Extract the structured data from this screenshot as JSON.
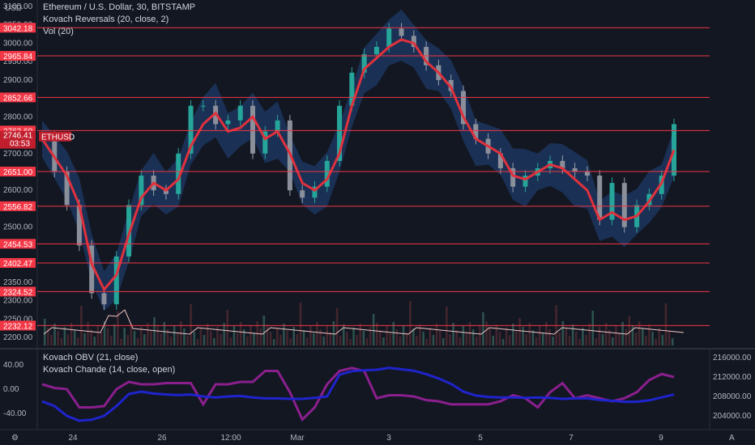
{
  "legend": {
    "title": "Ethereum / U.S. Dollar, 30, BITSTAMP",
    "ind1": "Kovach Reversals (20, close, 2)",
    "ind2": "Vol (20)",
    "ind3": "Kovach OBV (21, close)",
    "ind4": "Kovach Chande (14, close, open)"
  },
  "currency": "USD",
  "corner_left": "⚙",
  "corner_right": "A",
  "colors": {
    "background": "#131722",
    "level_line": "#f23645",
    "band": "#1e3a66",
    "ma": "#e0313d",
    "obv": "#1f24cc",
    "chande": "#8a1f8d",
    "vol_ma": "#f2c4c4"
  },
  "price_tag": {
    "symbol": "ETHUSD",
    "price": "2746.41",
    "countdown": "03:53"
  },
  "chart_data": {
    "type": "line",
    "price_axis": {
      "ylim": [
        2200,
        3100
      ],
      "ticks": [
        "3100.00",
        "3050.00",
        "3000.00",
        "2950.00",
        "2900.00",
        "2850.00",
        "2800.00",
        "2750.00",
        "2700.00",
        "2650.00",
        "2600.00",
        "2550.00",
        "2500.00",
        "2450.00",
        "2400.00",
        "2350.00",
        "2300.00",
        "2250.00",
        "2200.00"
      ]
    },
    "level_lines": [
      {
        "value": 3042.18,
        "label": "3042.18"
      },
      {
        "value": 2965.84,
        "label": "2965.84"
      },
      {
        "value": 2852.66,
        "label": "2852.66"
      },
      {
        "value": 2762.6,
        "label": "2762.60"
      },
      {
        "value": 2651.0,
        "label": "2651.00"
      },
      {
        "value": 2556.82,
        "label": "2556.82"
      },
      {
        "value": 2454.53,
        "label": "2454.53"
      },
      {
        "value": 2402.47,
        "label": "2402.47"
      },
      {
        "value": 2324.52,
        "label": "2324.52"
      },
      {
        "value": 2232.12,
        "label": "2232.12"
      }
    ],
    "x_ticks": [
      "24",
      "26",
      "12:00",
      "Mar",
      "3",
      "5",
      "7",
      "9"
    ],
    "series": [
      {
        "values": [
          2740,
          2690,
          2640,
          2560,
          2400,
          2330,
          2370,
          2480,
          2580,
          2620,
          2600,
          2630,
          2720,
          2780,
          2810,
          2760,
          2770,
          2800,
          2740,
          2760,
          2700,
          2620,
          2600,
          2630,
          2700,
          2830,
          2930,
          2960,
          2990,
          3010,
          3000,
          2950,
          2920,
          2880,
          2800,
          2740,
          2720,
          2700,
          2640,
          2630,
          2650,
          2670,
          2660,
          2630,
          2600,
          2520,
          2540,
          2520,
          2530,
          2570,
          2620,
          2710
        ]
      },
      {
        "values": [
          2746,
          2650,
          2560,
          2450,
          2320,
          2290,
          2420,
          2560,
          2640,
          2600,
          2590,
          2700,
          2830,
          2830,
          2780,
          2790,
          2830,
          2700,
          2760,
          2790,
          2600,
          2580,
          2610,
          2680,
          2830,
          2920,
          2970,
          2990,
          3040,
          3020,
          2990,
          2940,
          2900,
          2870,
          2780,
          2740,
          2700,
          2660,
          2610,
          2640,
          2660,
          2680,
          2660,
          2650,
          2640,
          2520,
          2620,
          2500,
          2560,
          2590,
          2640,
          2780
        ]
      }
    ],
    "osc_axis": {
      "ylim": [
        -60,
        60
      ],
      "ticks": [
        "40.00",
        "0.00",
        "-40.00"
      ]
    },
    "obv_axis": {
      "ylim": [
        202000,
        217000
      ],
      "ticks": [
        "216000.00",
        "212000.00",
        "208000.00",
        "204000.00"
      ]
    },
    "obv": [
      207000,
      206000,
      204000,
      203000,
      203200,
      204000,
      206000,
      208500,
      209000,
      208600,
      208400,
      208300,
      208400,
      208000,
      207800,
      208000,
      208100,
      207800,
      207600,
      207600,
      207500,
      207500,
      207700,
      208000,
      212500,
      213200,
      213400,
      213500,
      213900,
      213600,
      213300,
      212600,
      211700,
      210600,
      209000,
      208200,
      207900,
      207800,
      207800,
      207700,
      207800,
      207700,
      207500,
      207600,
      207600,
      207300,
      207100,
      206900,
      206900,
      207200,
      207800,
      208400
    ],
    "chande": [
      8,
      2,
      0,
      -30,
      -30,
      -28,
      0,
      12,
      8,
      8,
      10,
      10,
      10,
      -25,
      8,
      8,
      12,
      12,
      30,
      30,
      -5,
      -50,
      -30,
      8,
      30,
      35,
      30,
      -15,
      -10,
      -10,
      -12,
      -18,
      -20,
      -25,
      -25,
      -25,
      -25,
      -20,
      -10,
      -15,
      -30,
      -5,
      10,
      -15,
      -10,
      -15,
      -20,
      -15,
      -5,
      15,
      25,
      20
    ]
  }
}
